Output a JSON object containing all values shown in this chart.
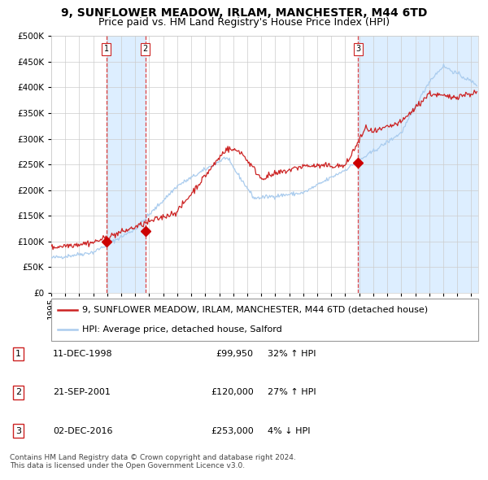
{
  "title": "9, SUNFLOWER MEADOW, IRLAM, MANCHESTER, M44 6TD",
  "subtitle": "Price paid vs. HM Land Registry's House Price Index (HPI)",
  "ylim": [
    0,
    500000
  ],
  "yticks": [
    0,
    50000,
    100000,
    150000,
    200000,
    250000,
    300000,
    350000,
    400000,
    450000,
    500000
  ],
  "xlim_start": 1995.0,
  "xlim_end": 2025.5,
  "background_color": "#ffffff",
  "grid_color": "#cccccc",
  "hpi_line_color": "#aaccee",
  "price_line_color": "#cc2222",
  "sale_marker_color": "#cc0000",
  "vline_color": "#dd4444",
  "shade_color": "#ddeeff",
  "legend_label_red": "9, SUNFLOWER MEADOW, IRLAM, MANCHESTER, M44 6TD (detached house)",
  "legend_label_blue": "HPI: Average price, detached house, Salford",
  "sale_events": [
    {
      "label": "1",
      "date_year": 1998.94,
      "price": 99950,
      "shade_start": 1998.94,
      "shade_end": 2001.72
    },
    {
      "label": "2",
      "date_year": 2001.72,
      "price": 120000
    },
    {
      "label": "3",
      "date_year": 2016.92,
      "price": 253000,
      "shade_start": 2016.92,
      "shade_end": 2025.5
    }
  ],
  "sale_points": [
    [
      1998.94,
      99950
    ],
    [
      2001.72,
      120000
    ],
    [
      2016.92,
      253000
    ]
  ],
  "table_rows": [
    {
      "num": "1",
      "date": "11-DEC-1998",
      "price": "£99,950",
      "pct": "32% ↑ HPI"
    },
    {
      "num": "2",
      "date": "21-SEP-2001",
      "price": "£120,000",
      "pct": "27% ↑ HPI"
    },
    {
      "num": "3",
      "date": "02-DEC-2016",
      "price": "£253,000",
      "pct": "4% ↓ HPI"
    }
  ],
  "footnote": "Contains HM Land Registry data © Crown copyright and database right 2024.\nThis data is licensed under the Open Government Licence v3.0.",
  "title_fontsize": 10,
  "subtitle_fontsize": 9,
  "tick_fontsize": 7.5,
  "legend_fontsize": 8,
  "table_fontsize": 8
}
